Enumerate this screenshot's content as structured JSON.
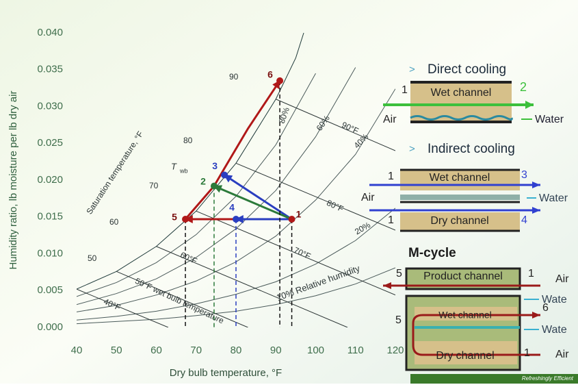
{
  "chart_data": {
    "type": "line",
    "x_label": "Dry bulb temperature, °F",
    "y_label": "Humidity ratio, lb moisture per lb dry air",
    "xlim": [
      40,
      120
    ],
    "ylim": [
      0,
      0.04
    ],
    "xticks": [
      40,
      50,
      60,
      70,
      80,
      90,
      100,
      110,
      120
    ],
    "yticks": [
      {
        "value": 0,
        "label": "0.000"
      },
      0.005,
      {
        "value": 0.01,
        "label": "0.010"
      },
      0.015,
      {
        "value": 0.02,
        "label": "0.020"
      },
      0.025,
      {
        "value": 0.03,
        "label": "0.030"
      },
      0.035,
      {
        "value": 0.04,
        "label": "0.040"
      }
    ],
    "series": [
      {
        "color": "#1f3a3a",
        "x": [
          40,
          50,
          60,
          70,
          80,
          90,
          95,
          97
        ],
        "values": [
          0.0052,
          0.0076,
          0.011,
          0.0158,
          0.0223,
          0.031,
          0.0366,
          0.04
        ]
      },
      {
        "color": "#4a5a5a",
        "x": [
          40,
          50,
          60,
          70,
          80,
          90,
          100
        ],
        "values": [
          0.0042,
          0.0061,
          0.0088,
          0.0126,
          0.0178,
          0.0248,
          0.0345
        ]
      },
      {
        "color": "#4a5a5a",
        "x": [
          40,
          50,
          60,
          70,
          80,
          90,
          100,
          110
        ],
        "values": [
          0.0031,
          0.0046,
          0.0066,
          0.0095,
          0.0134,
          0.0186,
          0.0259,
          0.0353
        ]
      },
      {
        "color": "#4a5a5a",
        "x": [
          40,
          50,
          60,
          70,
          80,
          90,
          100,
          110,
          120
        ],
        "values": [
          0.0021,
          0.003,
          0.0044,
          0.0063,
          0.0089,
          0.0124,
          0.0173,
          0.0235,
          0.0324
        ]
      },
      {
        "color": "#4a5a5a",
        "x": [
          40,
          50,
          60,
          70,
          80,
          90,
          100,
          110,
          120
        ],
        "values": [
          0.001,
          0.0015,
          0.0022,
          0.0032,
          0.0045,
          0.0062,
          0.0086,
          0.0118,
          0.0162
        ]
      },
      {
        "color": "#4a5a5a",
        "x": [
          40,
          50,
          60,
          70,
          80,
          90,
          100,
          110,
          120
        ],
        "values": [
          0.0005,
          0.0008,
          0.0011,
          0.0016,
          0.0022,
          0.0031,
          0.0043,
          0.0059,
          0.0081
        ]
      },
      {
        "color": "#2a3434",
        "x": [
          40,
          63
        ],
        "values": [
          0.0052,
          0
        ]
      },
      {
        "color": "#2a3434",
        "x": [
          50,
          83
        ],
        "values": [
          0.0076,
          0
        ]
      },
      {
        "color": "#2a3434",
        "x": [
          60,
          108
        ],
        "values": [
          0.011,
          0
        ]
      },
      {
        "color": "#2a3434",
        "x": [
          70,
          120
        ],
        "values": [
          0.0158,
          0.0044
        ]
      },
      {
        "color": "#2a3434",
        "x": [
          80,
          120
        ],
        "values": [
          0.0223,
          0.0132
        ]
      },
      {
        "color": "#2a3434",
        "x": [
          90,
          120
        ],
        "values": [
          0.031,
          0.024
        ]
      },
      {
        "color": "#b01818",
        "arrow": true,
        "x": [
          94,
          67.3
        ],
        "values": [
          0.0147,
          0.0147
        ]
      },
      {
        "color": "#b01818",
        "arrow": true,
        "x": [
          67.3,
          74.5,
          77.1,
          83,
          91
        ],
        "values": [
          0.0147,
          0.0192,
          0.0216,
          0.027,
          0.0335
        ]
      },
      {
        "color": "#2a3ec0",
        "arrow": true,
        "x": [
          94,
          80
        ],
        "values": [
          0.0147,
          0.0147
        ]
      },
      {
        "color": "#2a3ec0",
        "arrow": true,
        "x": [
          94,
          77.1
        ],
        "values": [
          0.0147,
          0.0207
        ]
      },
      {
        "color": "#2c7a3a",
        "arrow": true,
        "x": [
          94,
          74.5
        ],
        "values": [
          0.0147,
          0.0192
        ]
      }
    ],
    "points": [
      {
        "label": "1",
        "x": 94,
        "y": 0.0147,
        "color": "#b01818",
        "drop": true
      },
      {
        "label": "2",
        "x": 74.5,
        "y": 0.0192,
        "color": "#2c7a3a",
        "drop": true
      },
      {
        "label": "3",
        "x": 77.1,
        "y": 0.0207,
        "color": "#2a3ec0",
        "drop": false
      },
      {
        "label": "4",
        "x": 80,
        "y": 0.0147,
        "color": "#2a3ec0",
        "drop": true
      },
      {
        "label": "5",
        "x": 67.3,
        "y": 0.0147,
        "color": "#b01818",
        "drop": true
      },
      {
        "label": "6",
        "x": 91,
        "y": 0.0335,
        "color": "#b01818",
        "drop": true
      }
    ],
    "annotations": [
      "Saturation temperature, °F",
      "T",
      "wb",
      "90",
      "80",
      "70",
      "60",
      "50",
      "40°F",
      "50°F wet bulb temperature",
      "60°F",
      "70°F",
      "80°F",
      "90°F",
      "10% Relative humidity",
      "20%",
      "40%",
      "60%",
      "80%"
    ]
  },
  "direct": {
    "bullet": ">",
    "title": "Direct cooling",
    "inlet": "1",
    "outlet": "2",
    "channel": "Wet channel",
    "air": "Air",
    "water": "Water"
  },
  "indirect": {
    "bullet": ">",
    "title": "Indirect cooling",
    "wet_in": "1",
    "wet_out": "3",
    "wet_channel": "Wet channel",
    "air": "Air",
    "water": "Water",
    "dry_in": "1",
    "dry_channel": "Dry channel",
    "dry_out": "4"
  },
  "m_cycle": {
    "title": "M-cycle",
    "product_out": "5",
    "product_channel": "Product channel",
    "product_in": "1",
    "product_air": "Air",
    "water_1": "Wate",
    "wet_channel": "Wet channel",
    "wet_out": "6",
    "turn": "5",
    "water_2": "Wate",
    "dry_channel": "Dry channel",
    "dry_in": "1",
    "dry_air": "Air"
  },
  "footer": "Refreshingly Efficient"
}
